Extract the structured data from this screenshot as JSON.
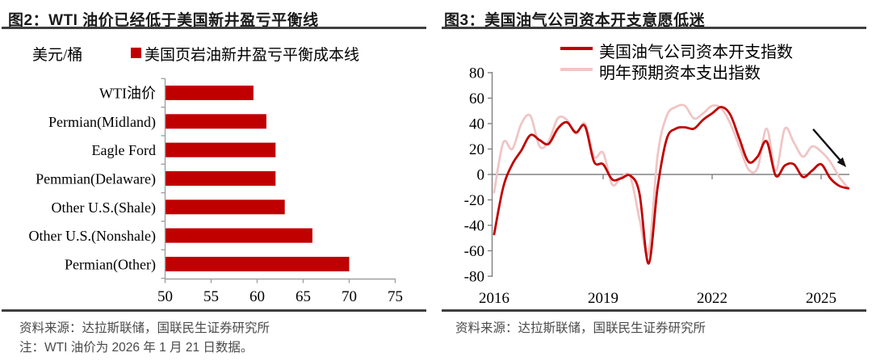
{
  "figure": {
    "panels": [
      {
        "title": "图2：WTI 油价已经低于美国新井盈亏平衡线",
        "source": "资料来源：达拉斯联储，国联民生证券研究所",
        "note": "注：WTI 油价为 2026 年 1 月 21 日数据。"
      },
      {
        "title": "图3：美国油气公司资本开支意愿低迷",
        "source": "资料来源：达拉斯联储，国联民生证券研究所"
      }
    ]
  },
  "colors": {
    "red": "#C00000",
    "pink": "#F0C5C5",
    "axis_gray": "#A0A0A0",
    "zero_line_gray": "#808080",
    "rule_dark": "#3F3F3F",
    "title_text": "#1A1A1A",
    "footer_text": "#4A4A4A",
    "arrow_black": "#111111"
  },
  "chart_data": [
    {
      "type": "bar",
      "orientation": "horizontal",
      "title": "图2：WTI 油价已经低于美国新井盈亏平衡线",
      "unit": "美元/桶",
      "legend": [
        "美国页岩油新井盈亏平衡成本线"
      ],
      "categories": [
        "WTI油价",
        "Permian(Midland)",
        "Eagle Ford",
        "Pemmian(Delaware)",
        "Other U.S.(Shale)",
        "Other U.S.(Nonshale)",
        "Permian(Other)"
      ],
      "values": [
        59.6,
        61,
        62,
        62,
        63,
        66,
        70
      ],
      "xlim": [
        50,
        75
      ],
      "xticks": [
        50,
        55,
        60,
        65,
        70,
        75
      ],
      "grid": false,
      "legend_position": "top"
    },
    {
      "type": "line",
      "title": "图3：美国油气公司资本开支意愿低迷",
      "x_start": 2016,
      "x_step": 0.25,
      "x_end": 2025.75,
      "xlim": [
        2016,
        2025.9
      ],
      "ylim": [
        -80,
        80
      ],
      "yticks": [
        80,
        60,
        40,
        20,
        0,
        -20,
        -40,
        -60,
        -80
      ],
      "xticks": [
        2016,
        2019,
        2022,
        2025
      ],
      "grid": false,
      "legend_position": "top",
      "series": [
        {
          "name": "美国油气公司资本开支指数",
          "color_key": "red",
          "values": [
            -47,
            -10,
            8,
            19,
            31,
            27,
            24,
            36,
            41,
            33,
            38,
            10,
            8,
            -4,
            -3,
            -1,
            -15,
            -70,
            -10,
            28,
            36,
            37,
            36,
            43,
            48,
            53,
            47,
            28,
            10,
            14,
            26,
            -1,
            7,
            8,
            -2,
            3,
            8,
            -3,
            -9,
            -11
          ]
        },
        {
          "name": "明年预期资本支出指数",
          "color_key": "pink",
          "values": [
            -14,
            25,
            20,
            40,
            46,
            22,
            26,
            44,
            43,
            32,
            40,
            14,
            17,
            -8,
            -2,
            -2,
            -35,
            -62,
            15,
            46,
            53,
            54,
            44,
            48,
            54,
            52,
            40,
            22,
            4,
            5,
            36,
            3,
            36,
            25,
            14,
            22,
            18,
            10,
            -2,
            -11
          ]
        }
      ],
      "annotation_arrow": {
        "from": [
          2024.78,
          35.6
        ],
        "to": [
          2025.69,
          5.7
        ]
      }
    }
  ]
}
